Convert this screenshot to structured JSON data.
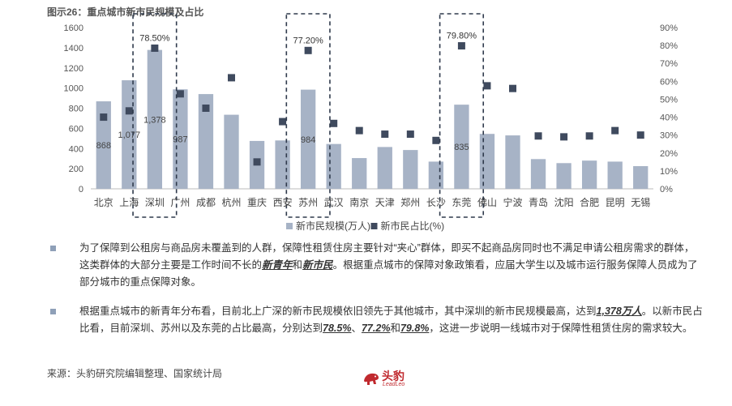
{
  "figure_title": "图示26：重点城市新市民规模及占比",
  "chart_data": {
    "type": "bar",
    "categories": [
      "北京",
      "上海",
      "深圳",
      "广州",
      "成都",
      "杭州",
      "重庆",
      "西安",
      "苏州",
      "武汉",
      "南京",
      "天津",
      "郑州",
      "长沙",
      "东莞",
      "佛山",
      "宁波",
      "青岛",
      "沈阳",
      "合肥",
      "昆明",
      "无锡"
    ],
    "series": [
      {
        "name": "新市民规模(万人)",
        "type": "bar",
        "axis": "left",
        "color": "#a7b3c6",
        "values": [
          868,
          1077,
          1378,
          987,
          940,
          735,
          475,
          480,
          984,
          445,
          305,
          415,
          385,
          270,
          835,
          545,
          530,
          295,
          255,
          280,
          270,
          225
        ]
      },
      {
        "name": "新市民占比(%)",
        "type": "scatter",
        "axis": "right",
        "color": "#3f4a5e",
        "values": [
          40.0,
          43.5,
          78.5,
          53.0,
          45.0,
          62.0,
          15.0,
          37.5,
          77.2,
          36.5,
          32.5,
          30.5,
          30.5,
          27.0,
          79.8,
          57.5,
          56.0,
          29.5,
          29.0,
          29.5,
          32.5,
          30.0
        ]
      }
    ],
    "bar_labels": [
      {
        "index": 0,
        "text": "868"
      },
      {
        "index": 1,
        "text": "1,077"
      },
      {
        "index": 2,
        "text": "1,378"
      },
      {
        "index": 3,
        "text": "987"
      },
      {
        "index": 8,
        "text": "984"
      },
      {
        "index": 14,
        "text": "835"
      }
    ],
    "point_labels": [
      {
        "index": 2,
        "text": "78.50%"
      },
      {
        "index": 8,
        "text": "77.20%"
      },
      {
        "index": 14,
        "text": "79.80%"
      }
    ],
    "highlighted_indices": [
      2,
      8,
      14
    ],
    "left_axis": {
      "ylim": [
        0,
        1600
      ],
      "ticks": [
        "0",
        "200",
        "400",
        "600",
        "800",
        "1000",
        "1200",
        "1400",
        "1600"
      ]
    },
    "right_axis": {
      "ylim": [
        0,
        90
      ],
      "ticks": [
        "0%",
        "10%",
        "20%",
        "30%",
        "40%",
        "50%",
        "60%",
        "70%",
        "80%",
        "90%"
      ]
    },
    "legend": {
      "position": "bottom"
    }
  },
  "bullets": [
    {
      "parts": [
        {
          "t": "为了保障到公租房与商品房未覆盖到的人群，保障性租赁住房主要针对“夹心”群体，即买不起商品房同时也不满足申请公租房需求的群体，这类群体的大部分主要是工作时间不长的"
        },
        {
          "t": "新青年",
          "hl": true
        },
        {
          "t": "和"
        },
        {
          "t": "新市民",
          "hl": true
        },
        {
          "t": "。根据重点城市的保障对象政策看，应届大学生以及城市运行服务保障人员成为了部分城市的重点保障对象。"
        }
      ]
    },
    {
      "parts": [
        {
          "t": "根据重点城市的新青年分布看，目前北上广深的新市民规模依旧领先于其他城市，其中深圳的新市民规模最高，达到"
        },
        {
          "t": "1,378万人",
          "hl": true
        },
        {
          "t": "。以新市民占比看，目前深圳、苏州以及东莞的占比最高，分别达到"
        },
        {
          "t": "78.5%",
          "hl": true
        },
        {
          "t": "、"
        },
        {
          "t": "77.2%",
          "hl": true
        },
        {
          "t": "和"
        },
        {
          "t": "79.8%",
          "hl": true
        },
        {
          "t": "，这进一步说明一线城市对于保障性租赁住房的需求较大。"
        }
      ]
    }
  ],
  "source": "来源：头豹研究院编辑整理、国家统计局",
  "logo": {
    "name": "头豹",
    "subtitle": "LeadLeo"
  },
  "colors": {
    "bar": "#a7b3c6",
    "marker": "#3f4a5e",
    "brand": "#c0292e"
  }
}
